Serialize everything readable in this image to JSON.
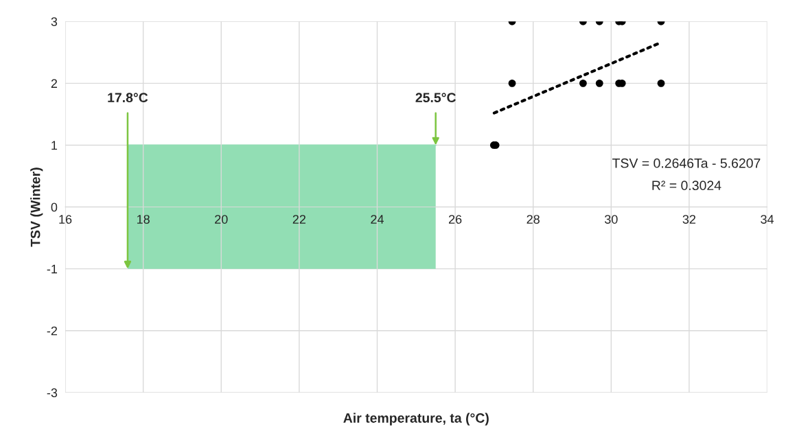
{
  "chart_data": {
    "type": "scatter",
    "xlabel": "Air temperature, ta (°C)",
    "ylabel": "TSV (Winter)",
    "xlim": [
      16,
      34
    ],
    "xticks": [
      16,
      18,
      20,
      22,
      24,
      26,
      28,
      30,
      32,
      34
    ],
    "ylim": [
      -3,
      3
    ],
    "yticks": [
      -3,
      -2,
      -1,
      0,
      1,
      2,
      3
    ],
    "grid": true,
    "series": [
      {
        "type": "line",
        "color": "#92deb4",
        "marker": "none",
        "x": [
          17.6,
          25.5
        ],
        "values": [
          1,
          1
        ],
        "lower": [
          -1,
          -1
        ],
        "upper": [
          1,
          1
        ]
      },
      {
        "color": "#000000",
        "marker": "circle",
        "x": [
          27.46,
          29.28,
          29.7,
          30.2,
          30.28,
          31.28,
          27.46,
          29.28,
          29.7,
          30.2,
          30.28,
          31.28,
          26.99,
          27.04
        ],
        "values": [
          3,
          3,
          3,
          3,
          3,
          3,
          2,
          2,
          2,
          2,
          2,
          2,
          1,
          1
        ]
      },
      {
        "type": "line",
        "color": "#000000",
        "line_style": "dotted",
        "marker": "none",
        "x": [
          27.0,
          31.28
        ],
        "values": [
          1.52,
          2.66
        ]
      }
    ],
    "annotations": [
      {
        "text": "17.8°C",
        "x": 17.6,
        "y": -1
      },
      {
        "text": "25.5°C",
        "x": 25.5,
        "y": 1
      },
      "TSV = 0.2646Ta - 5.6207",
      "R² = 0.3024"
    ]
  }
}
